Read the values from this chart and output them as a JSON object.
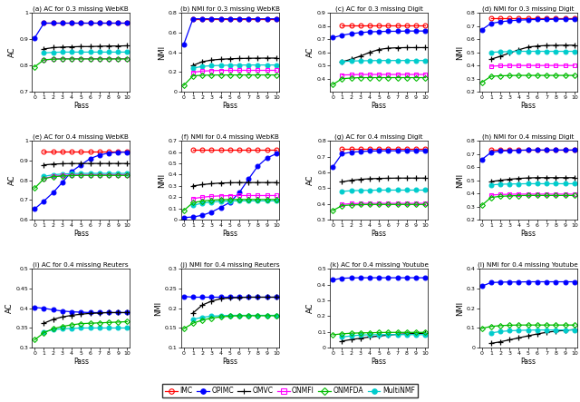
{
  "x": [
    0,
    1,
    2,
    3,
    4,
    5,
    6,
    7,
    8,
    9,
    10
  ],
  "methods": [
    "IMC",
    "OPIMC",
    "OMVC",
    "MultiNMF",
    "ONMFI",
    "ONMFDA"
  ],
  "plots": {
    "a": {
      "title": "(a) AC for 0.3 missing WebKB",
      "ylabel": "AC",
      "ylim": [
        0.7,
        1.0
      ],
      "yticks": [
        0.7,
        0.8,
        0.9,
        1.0
      ],
      "data": {
        "IMC": [
          null,
          0.961,
          0.961,
          0.961,
          0.961,
          0.961,
          0.961,
          0.961,
          0.961,
          0.961,
          0.961
        ],
        "OPIMC": [
          0.905,
          0.961,
          0.961,
          0.961,
          0.961,
          0.961,
          0.961,
          0.961,
          0.961,
          0.961,
          0.961
        ],
        "OMVC": [
          null,
          0.863,
          0.868,
          0.87,
          0.871,
          0.872,
          0.872,
          0.873,
          0.874,
          0.874,
          0.875
        ],
        "MultiNMF": [
          null,
          0.848,
          0.85,
          0.851,
          0.851,
          0.851,
          0.851,
          0.851,
          0.851,
          0.851,
          0.851
        ],
        "ONMFI": [
          null,
          0.82,
          0.825,
          0.826,
          0.826,
          0.826,
          0.826,
          0.826,
          0.826,
          0.826,
          0.826
        ],
        "ONMFDA": [
          0.795,
          0.822,
          0.824,
          0.825,
          0.825,
          0.825,
          0.825,
          0.825,
          0.825,
          0.825,
          0.825
        ]
      }
    },
    "b": {
      "title": "(b) NMI for 0.3 missing WebKB",
      "ylabel": "NMI",
      "ylim": [
        0.0,
        0.8
      ],
      "yticks": [
        0.0,
        0.2,
        0.4,
        0.6,
        0.8
      ],
      "data": {
        "IMC": [
          null,
          0.74,
          0.74,
          0.74,
          0.74,
          0.74,
          0.74,
          0.74,
          0.74,
          0.74,
          0.74
        ],
        "OPIMC": [
          0.48,
          0.74,
          0.74,
          0.74,
          0.74,
          0.74,
          0.74,
          0.74,
          0.74,
          0.74,
          0.74
        ],
        "OMVC": [
          null,
          0.268,
          0.305,
          0.322,
          0.33,
          0.335,
          0.338,
          0.34,
          0.341,
          0.342,
          0.342
        ],
        "MultiNMF": [
          null,
          0.24,
          0.258,
          0.265,
          0.268,
          0.27,
          0.271,
          0.272,
          0.272,
          0.272,
          0.272
        ],
        "ONMFI": [
          null,
          0.198,
          0.21,
          0.215,
          0.217,
          0.218,
          0.218,
          0.218,
          0.218,
          0.218,
          0.218
        ],
        "ONMFDA": [
          0.065,
          0.162,
          0.168,
          0.17,
          0.171,
          0.171,
          0.171,
          0.171,
          0.171,
          0.171,
          0.171
        ]
      }
    },
    "c": {
      "title": "(c) AC for 0.3 missing Digit",
      "ylabel": "AC",
      "ylim": [
        0.3,
        0.9
      ],
      "yticks": [
        0.4,
        0.5,
        0.6,
        0.7,
        0.8,
        0.9
      ],
      "data": {
        "IMC": [
          null,
          0.808,
          0.808,
          0.808,
          0.808,
          0.808,
          0.808,
          0.808,
          0.808,
          0.808,
          0.808
        ],
        "OPIMC": [
          0.712,
          0.73,
          0.742,
          0.75,
          0.756,
          0.758,
          0.76,
          0.76,
          0.762,
          0.762,
          0.762
        ],
        "OMVC": [
          null,
          0.528,
          0.548,
          0.572,
          0.6,
          0.622,
          0.632,
          0.635,
          0.636,
          0.636,
          0.636
        ],
        "MultiNMF": [
          null,
          0.53,
          0.534,
          0.536,
          0.537,
          0.538,
          0.538,
          0.538,
          0.538,
          0.538,
          0.538
        ],
        "ONMFI": [
          null,
          0.428,
          0.43,
          0.432,
          0.432,
          0.432,
          0.432,
          0.432,
          0.432,
          0.432,
          0.432
        ],
        "ONMFDA": [
          0.355,
          0.4,
          0.405,
          0.408,
          0.408,
          0.408,
          0.408,
          0.408,
          0.408,
          0.408,
          0.408
        ]
      }
    },
    "d": {
      "title": "(d) NMI for 0.3 missing Digit",
      "ylabel": "NMI",
      "ylim": [
        0.2,
        0.8
      ],
      "yticks": [
        0.2,
        0.3,
        0.4,
        0.5,
        0.6,
        0.7,
        0.8
      ],
      "data": {
        "IMC": [
          null,
          0.762,
          0.762,
          0.762,
          0.762,
          0.762,
          0.762,
          0.762,
          0.762,
          0.762,
          0.762
        ],
        "OPIMC": [
          0.672,
          0.72,
          0.732,
          0.74,
          0.745,
          0.748,
          0.75,
          0.75,
          0.752,
          0.752,
          0.752
        ],
        "OMVC": [
          null,
          0.448,
          0.47,
          0.495,
          0.52,
          0.54,
          0.548,
          0.552,
          0.553,
          0.554,
          0.554
        ],
        "MultiNMF": [
          null,
          0.5,
          0.504,
          0.506,
          0.508,
          0.508,
          0.508,
          0.508,
          0.508,
          0.508,
          0.508
        ],
        "ONMFI": [
          null,
          0.395,
          0.398,
          0.4,
          0.4,
          0.4,
          0.4,
          0.4,
          0.4,
          0.4,
          0.4
        ],
        "ONMFDA": [
          0.272,
          0.318,
          0.322,
          0.324,
          0.325,
          0.325,
          0.325,
          0.325,
          0.325,
          0.325,
          0.325
        ]
      }
    },
    "e": {
      "title": "(e) AC for 0.4 missing WebKB",
      "ylabel": "AC",
      "ylim": [
        0.6,
        1.0
      ],
      "yticks": [
        0.6,
        0.7,
        0.8,
        0.9,
        1.0
      ],
      "data": {
        "IMC": [
          null,
          0.945,
          0.945,
          0.945,
          0.945,
          0.945,
          0.945,
          0.945,
          0.945,
          0.945,
          0.945
        ],
        "OPIMC": [
          0.655,
          0.695,
          0.738,
          0.79,
          0.845,
          0.878,
          0.91,
          0.928,
          0.938,
          0.942,
          0.943
        ],
        "OMVC": [
          null,
          0.878,
          0.882,
          0.884,
          0.885,
          0.885,
          0.885,
          0.885,
          0.885,
          0.885,
          0.885
        ],
        "MultiNMF": [
          null,
          0.82,
          0.828,
          0.832,
          0.834,
          0.835,
          0.835,
          0.835,
          0.835,
          0.835,
          0.835
        ],
        "ONMFI": [
          null,
          0.81,
          0.82,
          0.825,
          0.827,
          0.828,
          0.828,
          0.828,
          0.828,
          0.828,
          0.828
        ],
        "ONMFDA": [
          0.76,
          0.808,
          0.818,
          0.822,
          0.824,
          0.825,
          0.825,
          0.825,
          0.825,
          0.825,
          0.825
        ]
      }
    },
    "f": {
      "title": "(f) NMI for 0.4 missing WebKB",
      "ylabel": "NMI",
      "ylim": [
        0.0,
        0.7
      ],
      "yticks": [
        0.0,
        0.1,
        0.2,
        0.3,
        0.4,
        0.5,
        0.6,
        0.7
      ],
      "data": {
        "IMC": [
          null,
          0.622,
          0.622,
          0.622,
          0.622,
          0.622,
          0.622,
          0.622,
          0.622,
          0.622,
          0.622
        ],
        "OPIMC": [
          0.02,
          0.025,
          0.04,
          0.068,
          0.11,
          0.155,
          0.24,
          0.36,
          0.475,
          0.548,
          0.585
        ],
        "OMVC": [
          null,
          0.3,
          0.312,
          0.32,
          0.326,
          0.328,
          0.33,
          0.33,
          0.33,
          0.33,
          0.33
        ],
        "MultiNMF": [
          null,
          0.128,
          0.148,
          0.158,
          0.163,
          0.166,
          0.168,
          0.168,
          0.168,
          0.168,
          0.168
        ],
        "ONMFI": [
          null,
          0.188,
          0.2,
          0.208,
          0.212,
          0.214,
          0.215,
          0.215,
          0.215,
          0.215,
          0.215
        ],
        "ONMFDA": [
          0.082,
          0.152,
          0.166,
          0.174,
          0.178,
          0.18,
          0.18,
          0.18,
          0.18,
          0.18,
          0.18
        ]
      }
    },
    "g": {
      "title": "(g) AC for 0.4 missing Digit",
      "ylabel": "AC",
      "ylim": [
        0.3,
        0.8
      ],
      "yticks": [
        0.3,
        0.4,
        0.5,
        0.6,
        0.7,
        0.8
      ],
      "data": {
        "IMC": [
          null,
          0.748,
          0.748,
          0.748,
          0.748,
          0.748,
          0.748,
          0.748,
          0.748,
          0.748,
          0.748
        ],
        "OPIMC": [
          0.635,
          0.718,
          0.728,
          0.732,
          0.735,
          0.736,
          0.737,
          0.737,
          0.737,
          0.737,
          0.737
        ],
        "OMVC": [
          null,
          0.54,
          0.55,
          0.556,
          0.56,
          0.562,
          0.563,
          0.564,
          0.564,
          0.564,
          0.564
        ],
        "MultiNMF": [
          null,
          0.48,
          0.484,
          0.486,
          0.487,
          0.488,
          0.488,
          0.488,
          0.488,
          0.488,
          0.488
        ],
        "ONMFI": [
          null,
          0.398,
          0.402,
          0.404,
          0.404,
          0.404,
          0.404,
          0.404,
          0.404,
          0.404,
          0.404
        ],
        "ONMFDA": [
          0.358,
          0.39,
          0.394,
          0.396,
          0.397,
          0.397,
          0.397,
          0.397,
          0.397,
          0.397,
          0.397
        ]
      }
    },
    "h": {
      "title": "(h) NMI for 0.4 missing Digit",
      "ylabel": "NMI",
      "ylim": [
        0.2,
        0.8
      ],
      "yticks": [
        0.2,
        0.3,
        0.4,
        0.5,
        0.6,
        0.7,
        0.8
      ],
      "data": {
        "IMC": [
          null,
          0.735,
          0.735,
          0.735,
          0.735,
          0.735,
          0.735,
          0.735,
          0.735,
          0.735,
          0.735
        ],
        "OPIMC": [
          0.658,
          0.712,
          0.722,
          0.726,
          0.728,
          0.73,
          0.73,
          0.73,
          0.73,
          0.73,
          0.73
        ],
        "OMVC": [
          null,
          0.49,
          0.5,
          0.508,
          0.514,
          0.518,
          0.52,
          0.52,
          0.52,
          0.52,
          0.52
        ],
        "MultiNMF": [
          null,
          0.465,
          0.47,
          0.472,
          0.473,
          0.474,
          0.474,
          0.474,
          0.474,
          0.474,
          0.474
        ],
        "ONMFI": [
          null,
          0.388,
          0.392,
          0.394,
          0.395,
          0.395,
          0.395,
          0.395,
          0.395,
          0.395,
          0.395
        ],
        "ONMFDA": [
          0.31,
          0.37,
          0.378,
          0.382,
          0.384,
          0.385,
          0.385,
          0.385,
          0.385,
          0.385,
          0.385
        ]
      }
    },
    "i": {
      "title": "(i) AC for 0.4 missing Reuters",
      "ylabel": "AC",
      "ylim": [
        0.3,
        0.5
      ],
      "yticks": [
        0.3,
        0.35,
        0.4,
        0.45,
        0.5
      ],
      "data": {
        "IMC": [
          null,
          null,
          null,
          null,
          null,
          null,
          null,
          null,
          null,
          null,
          null
        ],
        "OPIMC": [
          0.402,
          0.4,
          0.396,
          0.393,
          0.391,
          0.39,
          0.389,
          0.389,
          0.389,
          0.389,
          0.389
        ],
        "OMVC": [
          null,
          0.362,
          0.372,
          0.378,
          0.382,
          0.385,
          0.387,
          0.388,
          0.389,
          0.389,
          0.389
        ],
        "MultiNMF": [
          null,
          0.34,
          0.346,
          0.348,
          0.349,
          0.35,
          0.35,
          0.35,
          0.35,
          0.35,
          0.35
        ],
        "ONMFI": [
          null,
          null,
          null,
          null,
          null,
          null,
          null,
          null,
          null,
          null,
          null
        ],
        "ONMFDA": [
          0.32,
          0.338,
          0.348,
          0.354,
          0.358,
          0.361,
          0.362,
          0.363,
          0.364,
          0.365,
          0.366
        ]
      }
    },
    "j": {
      "title": "(j) NMI for 0.4 missing Reuters",
      "ylabel": "NMI",
      "ylim": [
        0.1,
        0.3
      ],
      "yticks": [
        0.1,
        0.15,
        0.2,
        0.25,
        0.3
      ],
      "data": {
        "IMC": [
          null,
          null,
          null,
          null,
          null,
          null,
          null,
          null,
          null,
          null,
          null
        ],
        "OPIMC": [
          0.23,
          0.228,
          0.228,
          0.228,
          0.228,
          0.228,
          0.228,
          0.228,
          0.228,
          0.228,
          0.228
        ],
        "OMVC": [
          null,
          0.188,
          0.208,
          0.218,
          0.224,
          0.226,
          0.227,
          0.228,
          0.228,
          0.228,
          0.228
        ],
        "MultiNMF": [
          null,
          0.172,
          0.177,
          0.18,
          0.181,
          0.182,
          0.182,
          0.182,
          0.182,
          0.182,
          0.182
        ],
        "ONMFI": [
          null,
          null,
          null,
          null,
          null,
          null,
          null,
          null,
          null,
          null,
          null
        ],
        "ONMFDA": [
          0.148,
          0.162,
          0.17,
          0.175,
          0.178,
          0.18,
          0.181,
          0.181,
          0.181,
          0.181,
          0.181
        ]
      }
    },
    "k": {
      "title": "(k) AC for 0.4 missing Youtube",
      "ylabel": "AC",
      "ylim": [
        0.0,
        0.5
      ],
      "yticks": [
        0.0,
        0.1,
        0.2,
        0.3,
        0.4,
        0.5
      ],
      "data": {
        "IMC": [
          null,
          null,
          null,
          null,
          null,
          null,
          null,
          null,
          null,
          null,
          null
        ],
        "OPIMC": [
          0.43,
          0.44,
          0.442,
          0.443,
          0.443,
          0.443,
          0.443,
          0.443,
          0.443,
          0.443,
          0.443
        ],
        "OMVC": [
          null,
          0.042,
          0.052,
          0.06,
          0.068,
          0.074,
          0.08,
          0.085,
          0.088,
          0.09,
          0.092
        ],
        "MultiNMF": [
          null,
          0.068,
          0.075,
          0.08,
          0.082,
          0.083,
          0.083,
          0.083,
          0.083,
          0.083,
          0.083
        ],
        "ONMFI": [
          null,
          null,
          null,
          null,
          null,
          null,
          null,
          null,
          null,
          null,
          null
        ],
        "ONMFDA": [
          0.082,
          0.088,
          0.092,
          0.094,
          0.095,
          0.096,
          0.097,
          0.097,
          0.097,
          0.097,
          0.097
        ]
      }
    },
    "l": {
      "title": "(l) NMI for 0.4 missing Youtube",
      "ylabel": "NMI",
      "ylim": [
        0.0,
        0.4
      ],
      "yticks": [
        0.0,
        0.1,
        0.2,
        0.3,
        0.4
      ],
      "data": {
        "IMC": [
          null,
          null,
          null,
          null,
          null,
          null,
          null,
          null,
          null,
          null,
          null
        ],
        "OPIMC": [
          0.312,
          0.33,
          0.332,
          0.333,
          0.333,
          0.334,
          0.334,
          0.334,
          0.334,
          0.334,
          0.334
        ],
        "OMVC": [
          null,
          0.022,
          0.03,
          0.04,
          0.05,
          0.06,
          0.07,
          0.078,
          0.084,
          0.088,
          0.092
        ],
        "MultiNMF": [
          null,
          0.075,
          0.082,
          0.086,
          0.088,
          0.089,
          0.09,
          0.09,
          0.09,
          0.09,
          0.09
        ],
        "ONMFI": [
          null,
          null,
          null,
          null,
          null,
          null,
          null,
          null,
          null,
          null,
          null
        ],
        "ONMFDA": [
          0.098,
          0.108,
          0.112,
          0.114,
          0.115,
          0.115,
          0.115,
          0.115,
          0.115,
          0.115,
          0.115
        ]
      }
    }
  }
}
